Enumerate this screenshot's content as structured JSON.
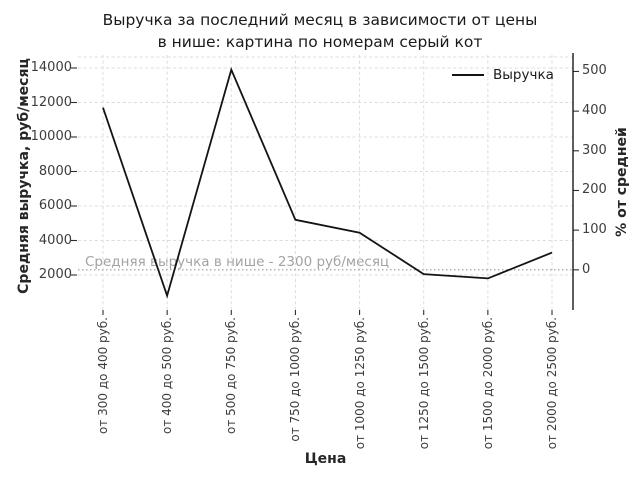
{
  "figure": {
    "background": "#ffffff"
  },
  "chart_data": {
    "type": "line",
    "title": "Выручка за последний месяц в зависимости от цены в нише: картина по номерам серый кот",
    "title_lines": [
      "Выручка за последний месяц в зависимости от цены",
      "в нише: картина по номерам серый кот"
    ],
    "xlabel": "Цена",
    "ylabel_left": "Средняя выручка, руб/месяц",
    "ylabel_right": "% от средней",
    "categories": [
      "от 300 до 400 руб.",
      "от 400 до 500 руб.",
      "от 500 до 750 руб.",
      "от 750 до 1000 руб.",
      "от 1000 до 1250 руб.",
      "от 1250 до 1500 руб.",
      "от 1500 до 2000 руб.",
      "от 2000 до 2500 руб."
    ],
    "series": [
      {
        "name": "Выручка",
        "color": "#141414",
        "values": [
          11700,
          800,
          13900,
          5200,
          4450,
          2050,
          1800,
          3300
        ]
      }
    ],
    "yticks_left": [
      2000,
      4000,
      6000,
      8000,
      10000,
      12000,
      14000
    ],
    "yticks_right": [
      0,
      100,
      200,
      300,
      400,
      500
    ],
    "ylim_left": [
      0,
      14750
    ],
    "grid": true,
    "legend": {
      "label": "Выручка",
      "position": "upper right"
    },
    "reference_line": {
      "value": 2300,
      "label": "Средняя выручка в нише - 2300 руб/месяц",
      "color": "#999999",
      "style": "dotted"
    }
  },
  "colors": {
    "grid": "#dcdcdc",
    "tick_text": "#3d3d3d",
    "title_text": "#1a1a1a",
    "annotation_text": "#a3a3a3",
    "axis_spine": "#2e2e2e"
  }
}
